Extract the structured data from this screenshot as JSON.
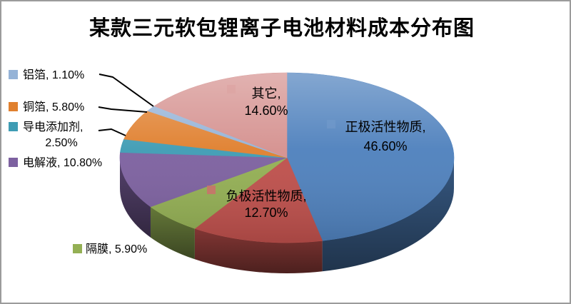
{
  "frame": {
    "background": "#ffffff",
    "border_color": "#9b9b9b"
  },
  "title": "某款三元软包锂离子电池材料成本分布图",
  "chart_data": {
    "type": "pie",
    "style": "3d",
    "title": "某款三元软包锂离子电池材料成本分布图",
    "unit": "%",
    "direction": "clockwise",
    "start_angle_deg": 0,
    "legend": "none (data labels with legend keys)",
    "slices": [
      {
        "key": "cathode-active-material",
        "label": "正极活性物质",
        "value": 46.6,
        "display_value": "46.60%",
        "color": "#4f81bd",
        "label_placement": "inside"
      },
      {
        "key": "anode-active-material",
        "label": "负极活性物质",
        "value": 12.7,
        "display_value": "12.70%",
        "color": "#bf504c",
        "label_placement": "inside"
      },
      {
        "key": "separator",
        "label": "隔膜",
        "value": 5.9,
        "display_value": "5.90%",
        "color": "#94b054",
        "label_placement": "outside-left"
      },
      {
        "key": "electrolyte",
        "label": "电解液",
        "value": 10.8,
        "display_value": "10.80%",
        "color": "#7d61a0",
        "label_placement": "outside-left"
      },
      {
        "key": "conductive-additive",
        "label": "导电添加剂",
        "value": 2.5,
        "display_value": "2.50%",
        "color": "#3f9cb4",
        "label_placement": "outside-left"
      },
      {
        "key": "copper-foil",
        "label": "铜箔",
        "value": 5.8,
        "display_value": "5.80%",
        "color": "#e0802f",
        "label_placement": "outside-left"
      },
      {
        "key": "aluminum-foil",
        "label": "铝箔",
        "value": 1.1,
        "display_value": "1.10%",
        "color": "#95b3d7",
        "label_placement": "outside-left"
      },
      {
        "key": "other",
        "label": "其它",
        "value": 14.6,
        "display_value": "14.60%",
        "color": "#d5918f",
        "label_placement": "inside"
      }
    ]
  }
}
